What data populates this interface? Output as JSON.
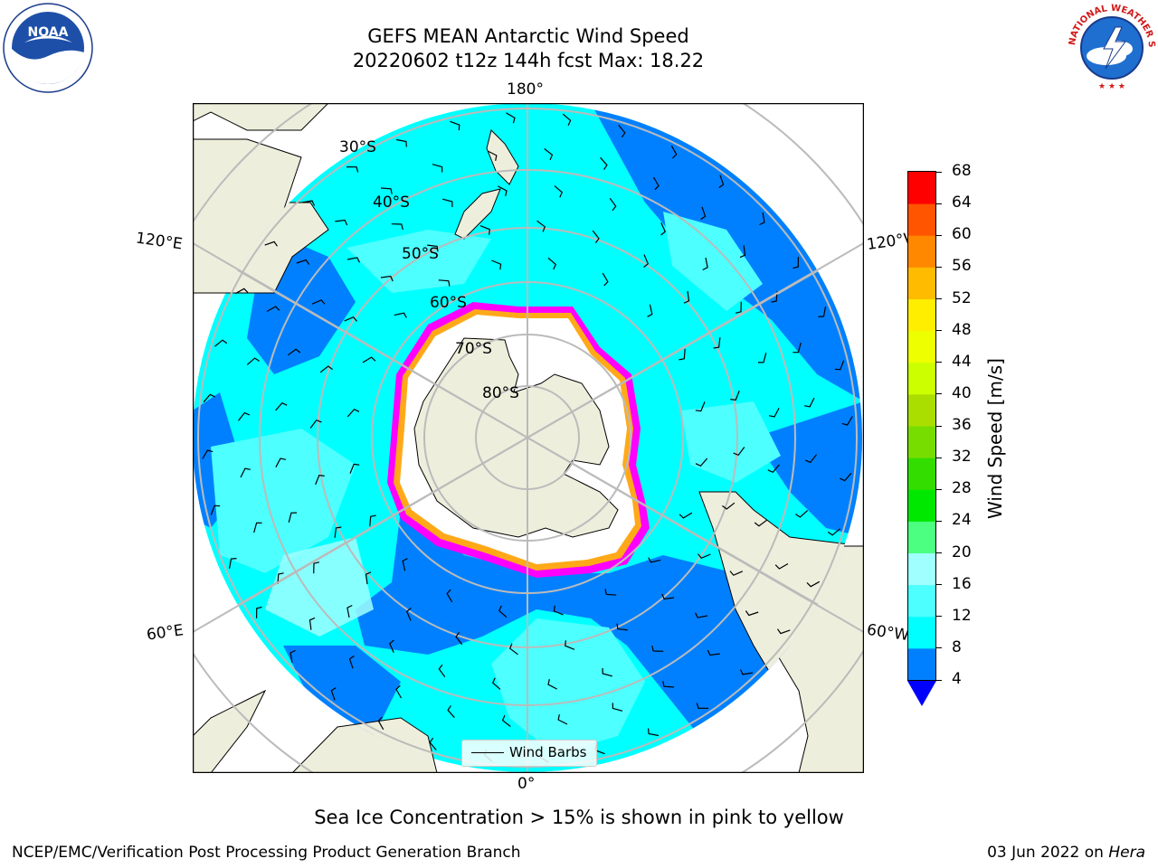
{
  "header": {
    "title_line1": "GEFS MEAN Antarctic Wind Speed",
    "title_line2": "20220602 t12z 144h fcst   Max: 18.22"
  },
  "logos": {
    "left": {
      "name": "noara-logo",
      "text": "NOAA"
    },
    "right": {
      "name": "nws-logo",
      "text": "NATIONAL WEATHER SERVICE"
    }
  },
  "map": {
    "longitude_labels": {
      "top": "180°",
      "bottom": "0°",
      "upper_left": "120°E",
      "upper_right": "120°W",
      "lower_left": "60°E",
      "lower_right": "60°W"
    },
    "latitude_labels": [
      "30°S",
      "40°S",
      "50°S",
      "60°S",
      "70°S",
      "80°S"
    ],
    "legend_label": "Wind Barbs",
    "colors": {
      "land": "#eeeedd",
      "ocean_fill_4_8": "#0080ff",
      "ocean_fill_8_12": "#00ffff",
      "ocean_fill_12_16": "#4dffff",
      "ocean_fill_16_20": "#a0ffff",
      "sea_ice_edge": "#ff00ff",
      "sea_ice_inner": "#ffbb00",
      "ice_shelf": "#ffffff",
      "grid": "#bbbbbb"
    }
  },
  "colorbar": {
    "label": "Wind Speed [m/s]",
    "ticks": [
      "4",
      "8",
      "12",
      "16",
      "20",
      "24",
      "28",
      "32",
      "36",
      "40",
      "44",
      "48",
      "52",
      "56",
      "60",
      "64",
      "68"
    ],
    "colors": [
      "#0080ff",
      "#00ffff",
      "#4dffff",
      "#a0ffff",
      "#4dff80",
      "#00e800",
      "#33dd00",
      "#77dd00",
      "#aadd00",
      "#ccff00",
      "#eeff00",
      "#ffee00",
      "#ffbb00",
      "#ff8800",
      "#ff5500",
      "#ff0000"
    ],
    "under_color": "#0000ff"
  },
  "subtitle": "Sea Ice Concentration > 15% is shown in pink to yellow",
  "footer": {
    "left": "NCEP/EMC/Verification Post Processing Product Generation Branch",
    "right_prefix": "03 Jun 2022 on ",
    "right_italic": "Hera"
  }
}
